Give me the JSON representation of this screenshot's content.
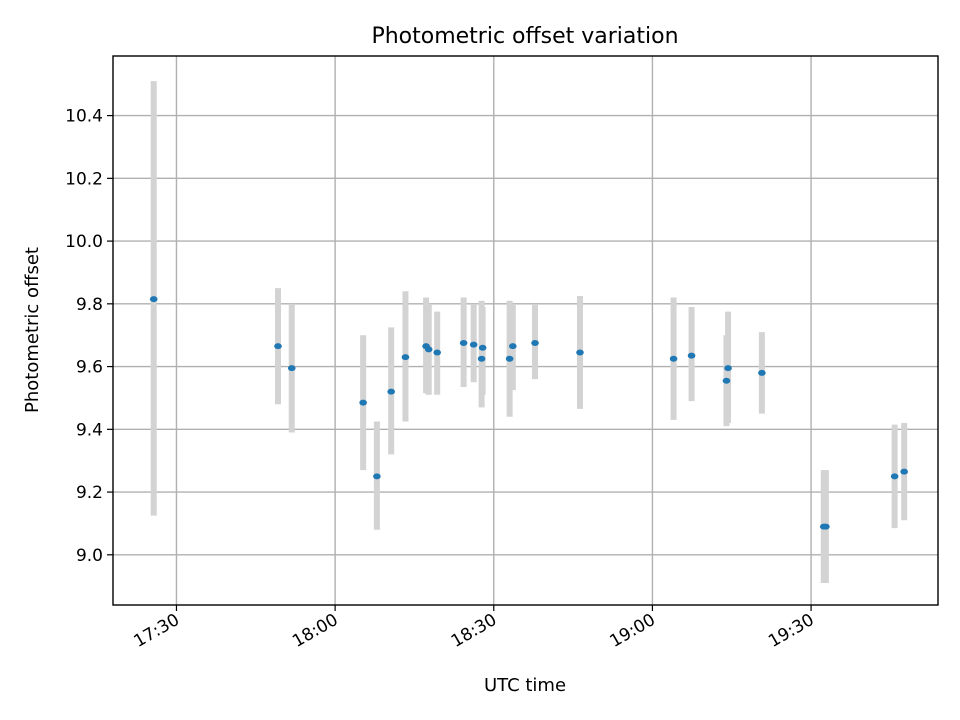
{
  "chart_data": {
    "type": "scatter",
    "title": "Photometric offset variation",
    "xlabel": "UTC time",
    "ylabel": "Photometric offset",
    "xlim": [
      1038,
      1194
    ],
    "ylim": [
      8.84,
      10.59
    ],
    "grid": true,
    "x_ticks": [
      {
        "value": 1050,
        "label": "17:30"
      },
      {
        "value": 1080,
        "label": "18:00"
      },
      {
        "value": 1110,
        "label": "18:30"
      },
      {
        "value": 1140,
        "label": "19:00"
      },
      {
        "value": 1170,
        "label": "19:30"
      }
    ],
    "y_ticks": [
      {
        "value": 9.0,
        "label": "9.0"
      },
      {
        "value": 9.2,
        "label": "9.2"
      },
      {
        "value": 9.4,
        "label": "9.4"
      },
      {
        "value": 9.6,
        "label": "9.6"
      },
      {
        "value": 9.8,
        "label": "9.8"
      },
      {
        "value": 10.0,
        "label": "10.0"
      },
      {
        "value": 10.2,
        "label": "10.2"
      },
      {
        "value": 10.4,
        "label": "10.4"
      }
    ],
    "x_unit": "minutes since 00:00 UTC",
    "series": [
      {
        "name": "photometric offset",
        "color": "#1f77b4",
        "errorbar_color": "#d3d3d3",
        "points": [
          {
            "x": 1045.7,
            "y": 9.815,
            "ylo": 9.125,
            "yhi": 10.51
          },
          {
            "x": 1069.2,
            "y": 9.665,
            "ylo": 9.48,
            "yhi": 9.85
          },
          {
            "x": 1071.8,
            "y": 9.595,
            "ylo": 9.39,
            "yhi": 9.8
          },
          {
            "x": 1085.3,
            "y": 9.485,
            "ylo": 9.27,
            "yhi": 9.7
          },
          {
            "x": 1087.9,
            "y": 9.25,
            "ylo": 9.08,
            "yhi": 9.425
          },
          {
            "x": 1090.6,
            "y": 9.52,
            "ylo": 9.32,
            "yhi": 9.725
          },
          {
            "x": 1093.3,
            "y": 9.63,
            "ylo": 9.425,
            "yhi": 9.84
          },
          {
            "x": 1097.2,
            "y": 9.665,
            "ylo": 9.515,
            "yhi": 9.82
          },
          {
            "x": 1097.7,
            "y": 9.655,
            "ylo": 9.51,
            "yhi": 9.8
          },
          {
            "x": 1099.3,
            "y": 9.645,
            "ylo": 9.51,
            "yhi": 9.775
          },
          {
            "x": 1104.3,
            "y": 9.675,
            "ylo": 9.535,
            "yhi": 9.82
          },
          {
            "x": 1106.2,
            "y": 9.67,
            "ylo": 9.55,
            "yhi": 9.8
          },
          {
            "x": 1107.7,
            "y": 9.625,
            "ylo": 9.47,
            "yhi": 9.81
          },
          {
            "x": 1107.9,
            "y": 9.66,
            "ylo": 9.51,
            "yhi": 9.79
          },
          {
            "x": 1113.0,
            "y": 9.625,
            "ylo": 9.44,
            "yhi": 9.81
          },
          {
            "x": 1113.6,
            "y": 9.665,
            "ylo": 9.525,
            "yhi": 9.8
          },
          {
            "x": 1117.8,
            "y": 9.675,
            "ylo": 9.56,
            "yhi": 9.8
          },
          {
            "x": 1126.3,
            "y": 9.645,
            "ylo": 9.465,
            "yhi": 9.825
          },
          {
            "x": 1144.0,
            "y": 9.625,
            "ylo": 9.43,
            "yhi": 9.82
          },
          {
            "x": 1147.4,
            "y": 9.635,
            "ylo": 9.49,
            "yhi": 9.79
          },
          {
            "x": 1154.0,
            "y": 9.555,
            "ylo": 9.41,
            "yhi": 9.7
          },
          {
            "x": 1154.3,
            "y": 9.595,
            "ylo": 9.42,
            "yhi": 9.775
          },
          {
            "x": 1160.7,
            "y": 9.58,
            "ylo": 9.45,
            "yhi": 9.71
          },
          {
            "x": 1172.4,
            "y": 9.09,
            "ylo": 8.91,
            "yhi": 9.27
          },
          {
            "x": 1172.8,
            "y": 9.09,
            "ylo": 8.91,
            "yhi": 9.27
          },
          {
            "x": 1185.8,
            "y": 9.25,
            "ylo": 9.085,
            "yhi": 9.415
          },
          {
            "x": 1187.6,
            "y": 9.265,
            "ylo": 9.11,
            "yhi": 9.42
          }
        ]
      }
    ]
  }
}
